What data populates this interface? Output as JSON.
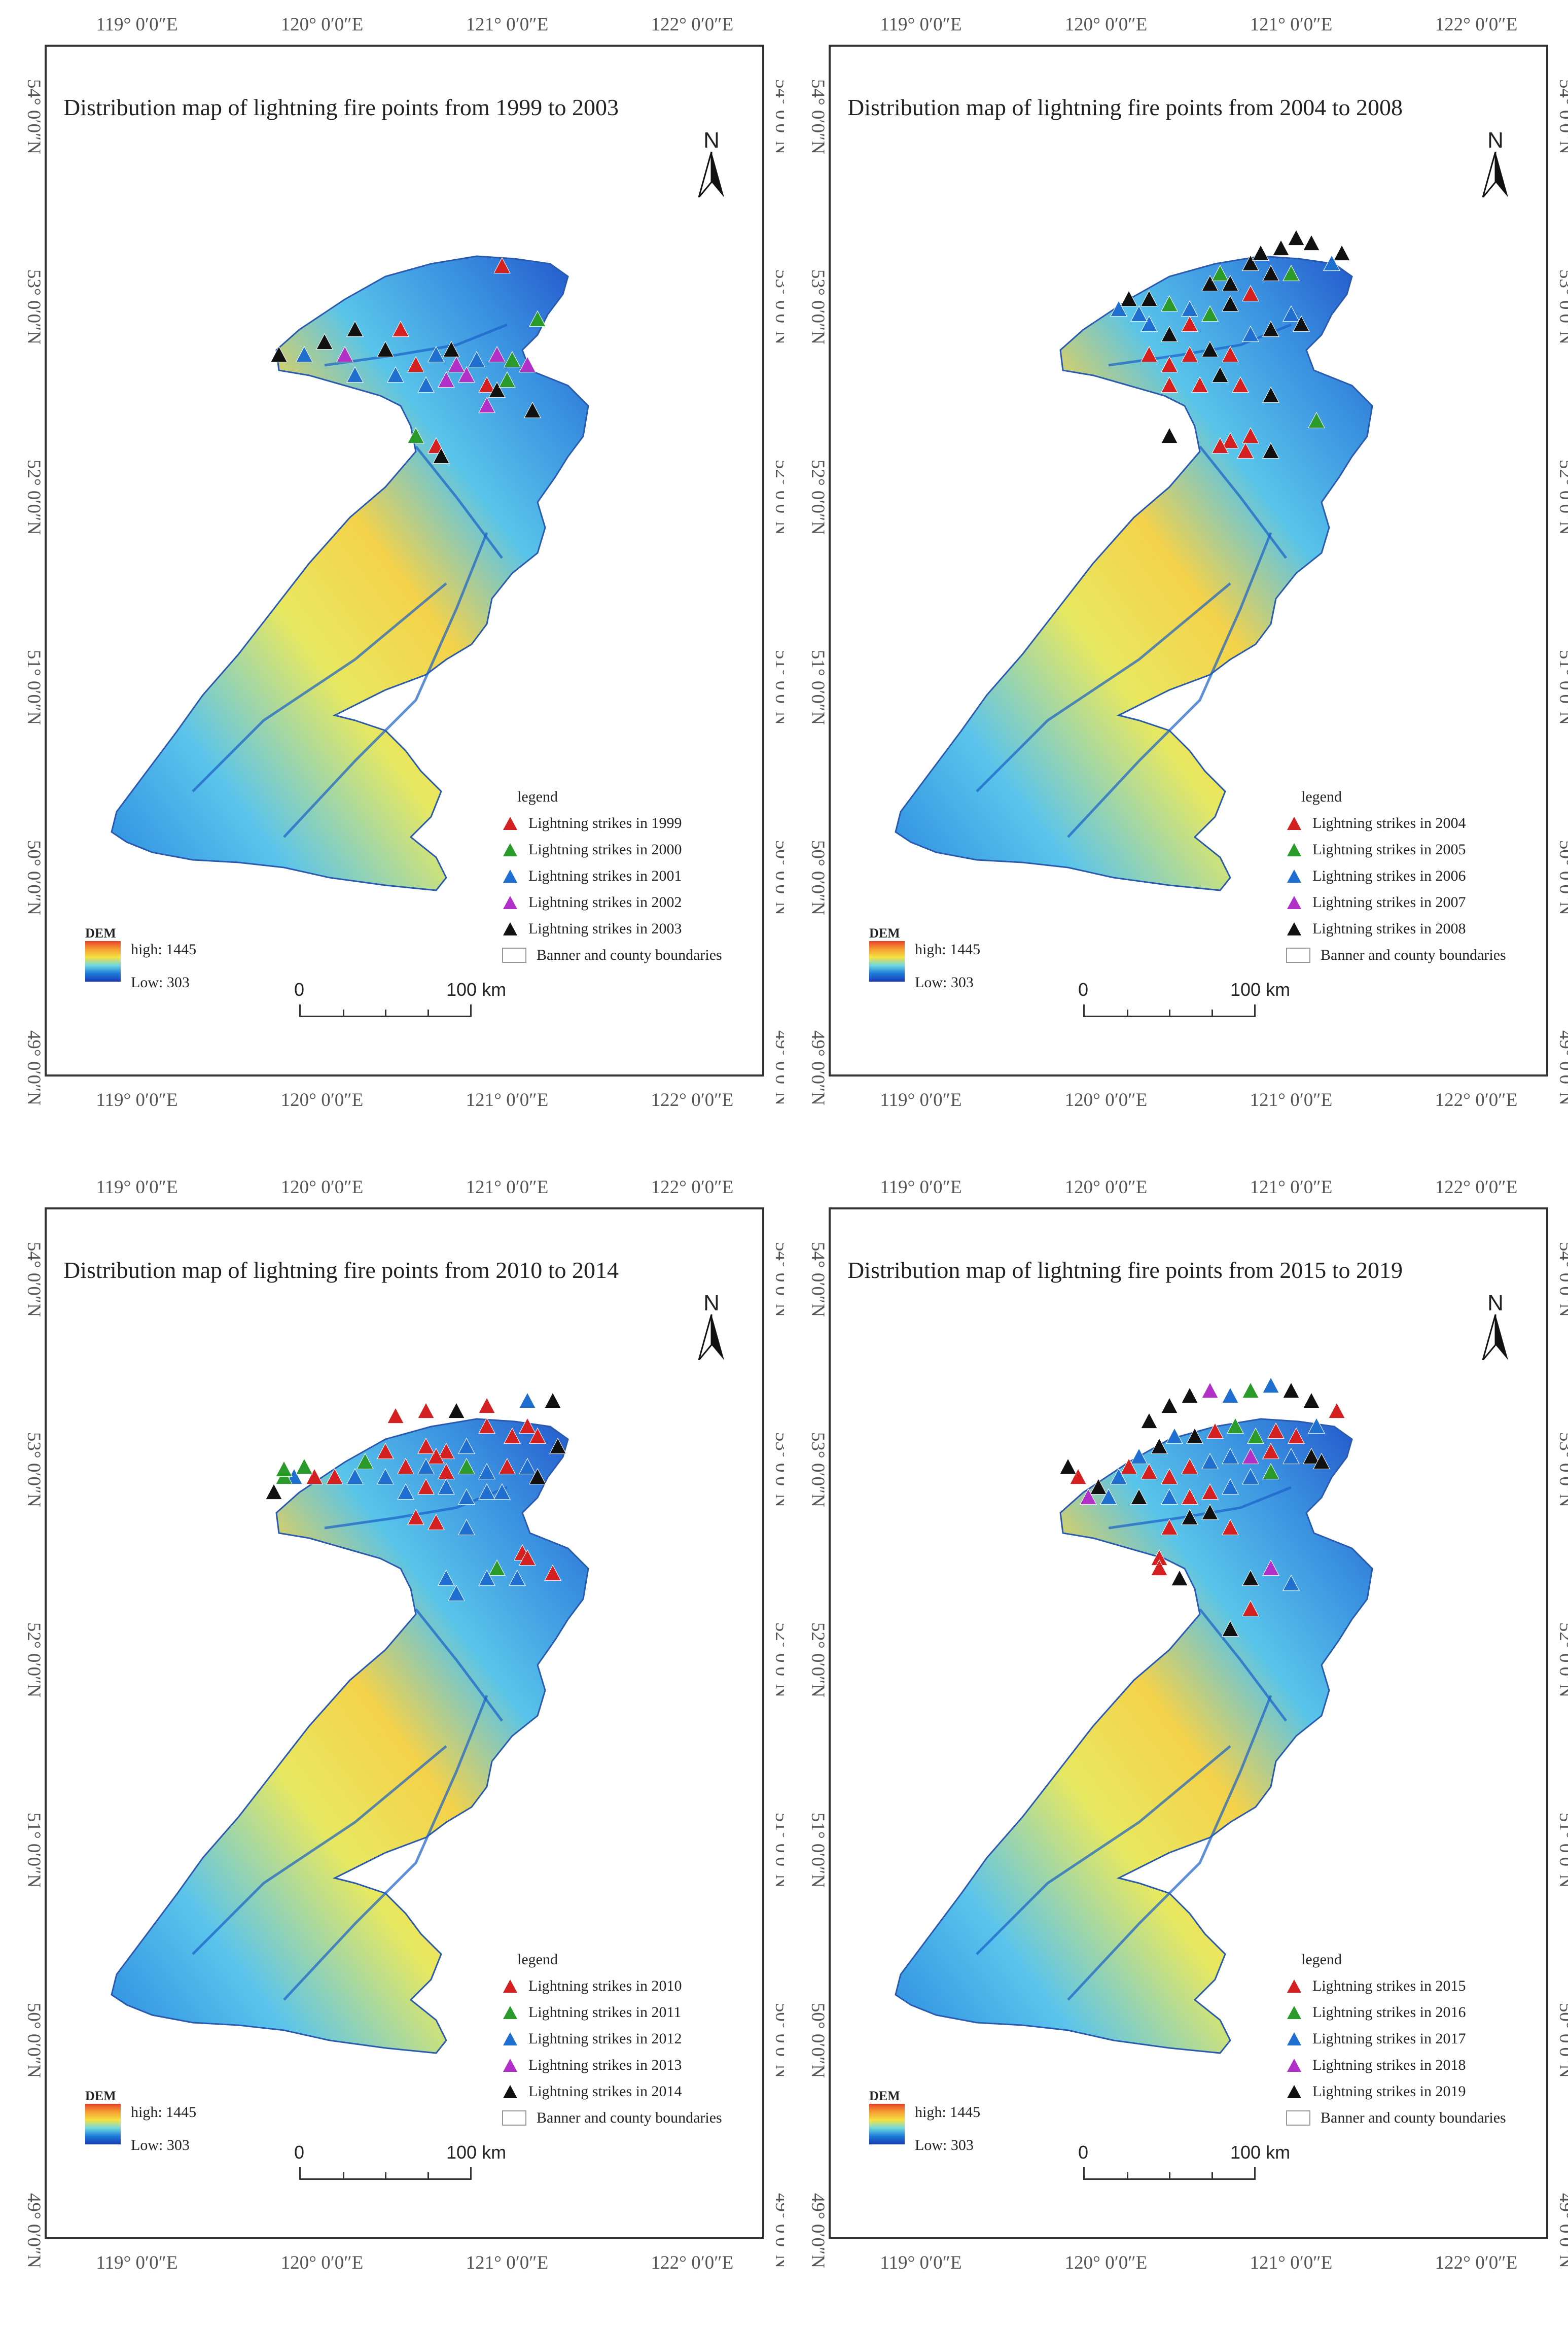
{
  "coords": {
    "lon": [
      "119° 0′0″E",
      "120° 0′0″E",
      "121° 0′0″E",
      "122° 0′0″E"
    ],
    "lat": [
      "54° 0′0″N",
      "53° 0′0″N",
      "52° 0′0″N",
      "51° 0′0″N",
      "50° 0′0″N",
      "49° 0′0″N"
    ]
  },
  "north_label": "N",
  "legend_title": "legend",
  "boundary_label": "Banner and county boundaries",
  "dem": {
    "title": "DEM",
    "high_label": "high:",
    "high_value": "1445",
    "low_label": "Low:",
    "low_value": "303"
  },
  "scale": {
    "zero": "0",
    "distance": "100 km"
  },
  "colors": {
    "red": "#d42020",
    "green": "#2a9a2a",
    "blue": "#1e6fd0",
    "purple": "#b030c8",
    "black": "#111111"
  },
  "panels": [
    {
      "title": "Distribution map of lightning fire points from 1999 to 2003",
      "legend": [
        "Lightning strikes in 1999",
        "Lightning strikes in 2000",
        "Lightning strikes in 2001",
        "Lightning strikes in 2002",
        "Lightning strikes in 2003"
      ]
    },
    {
      "title": "Distribution map of lightning fire points from 2004 to 2008",
      "legend": [
        "Lightning strikes in 2004",
        "Lightning strikes in 2005",
        "Lightning strikes in 2006",
        "Lightning strikes in 2007",
        "Lightning strikes in 2008"
      ]
    },
    {
      "title": "Distribution map of lightning fire points from 2010 to 2014",
      "legend": [
        "Lightning strikes in 2010",
        "Lightning strikes in 2011",
        "Lightning strikes in 2012",
        "Lightning strikes in 2013",
        "Lightning strikes in 2014"
      ]
    },
    {
      "title": "Distribution map of lightning fire points from 2015 to 2019",
      "legend": [
        "Lightning strikes in 2015",
        "Lightning strikes in 2016",
        "Lightning strikes in 2017",
        "Lightning strikes in 2018",
        "Lightning strikes in 2019"
      ]
    }
  ]
}
